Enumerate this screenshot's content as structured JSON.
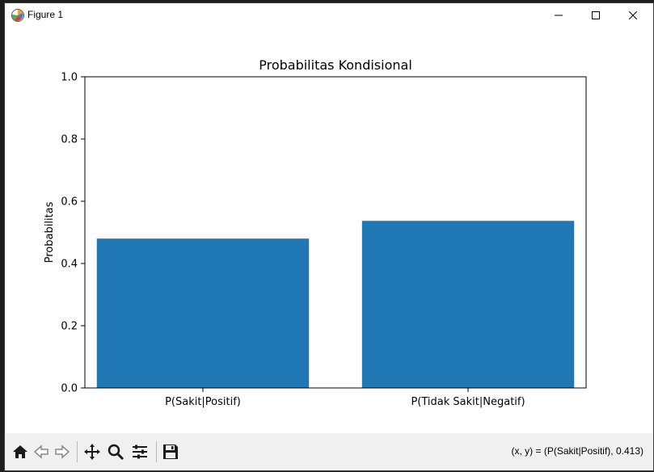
{
  "window": {
    "title": "Figure 1",
    "controls": {
      "minimize": "minimize",
      "maximize": "maximize",
      "close": "close"
    }
  },
  "chart_data": {
    "type": "bar",
    "title": "Probabilitas Kondisional",
    "xlabel": "",
    "ylabel": "Probabilitas",
    "categories": [
      "P(Sakit|Positif)",
      "P(Tidak Sakit|Negatif)"
    ],
    "values": [
      0.48,
      0.537
    ],
    "ylim": [
      0,
      1.0
    ],
    "yticks": [
      "0.0",
      "0.2",
      "0.4",
      "0.6",
      "0.8",
      "1.0"
    ],
    "bar_color": "#1f77b4",
    "grid": false,
    "legend": "none"
  },
  "toolbar": {
    "icons": [
      "home-icon",
      "back-icon",
      "forward-icon",
      "pan-icon",
      "zoom-icon",
      "configure-subplots-icon",
      "save-icon"
    ],
    "coords_text": "(x, y) = (P(Sakit|Positif), 0.413)"
  }
}
